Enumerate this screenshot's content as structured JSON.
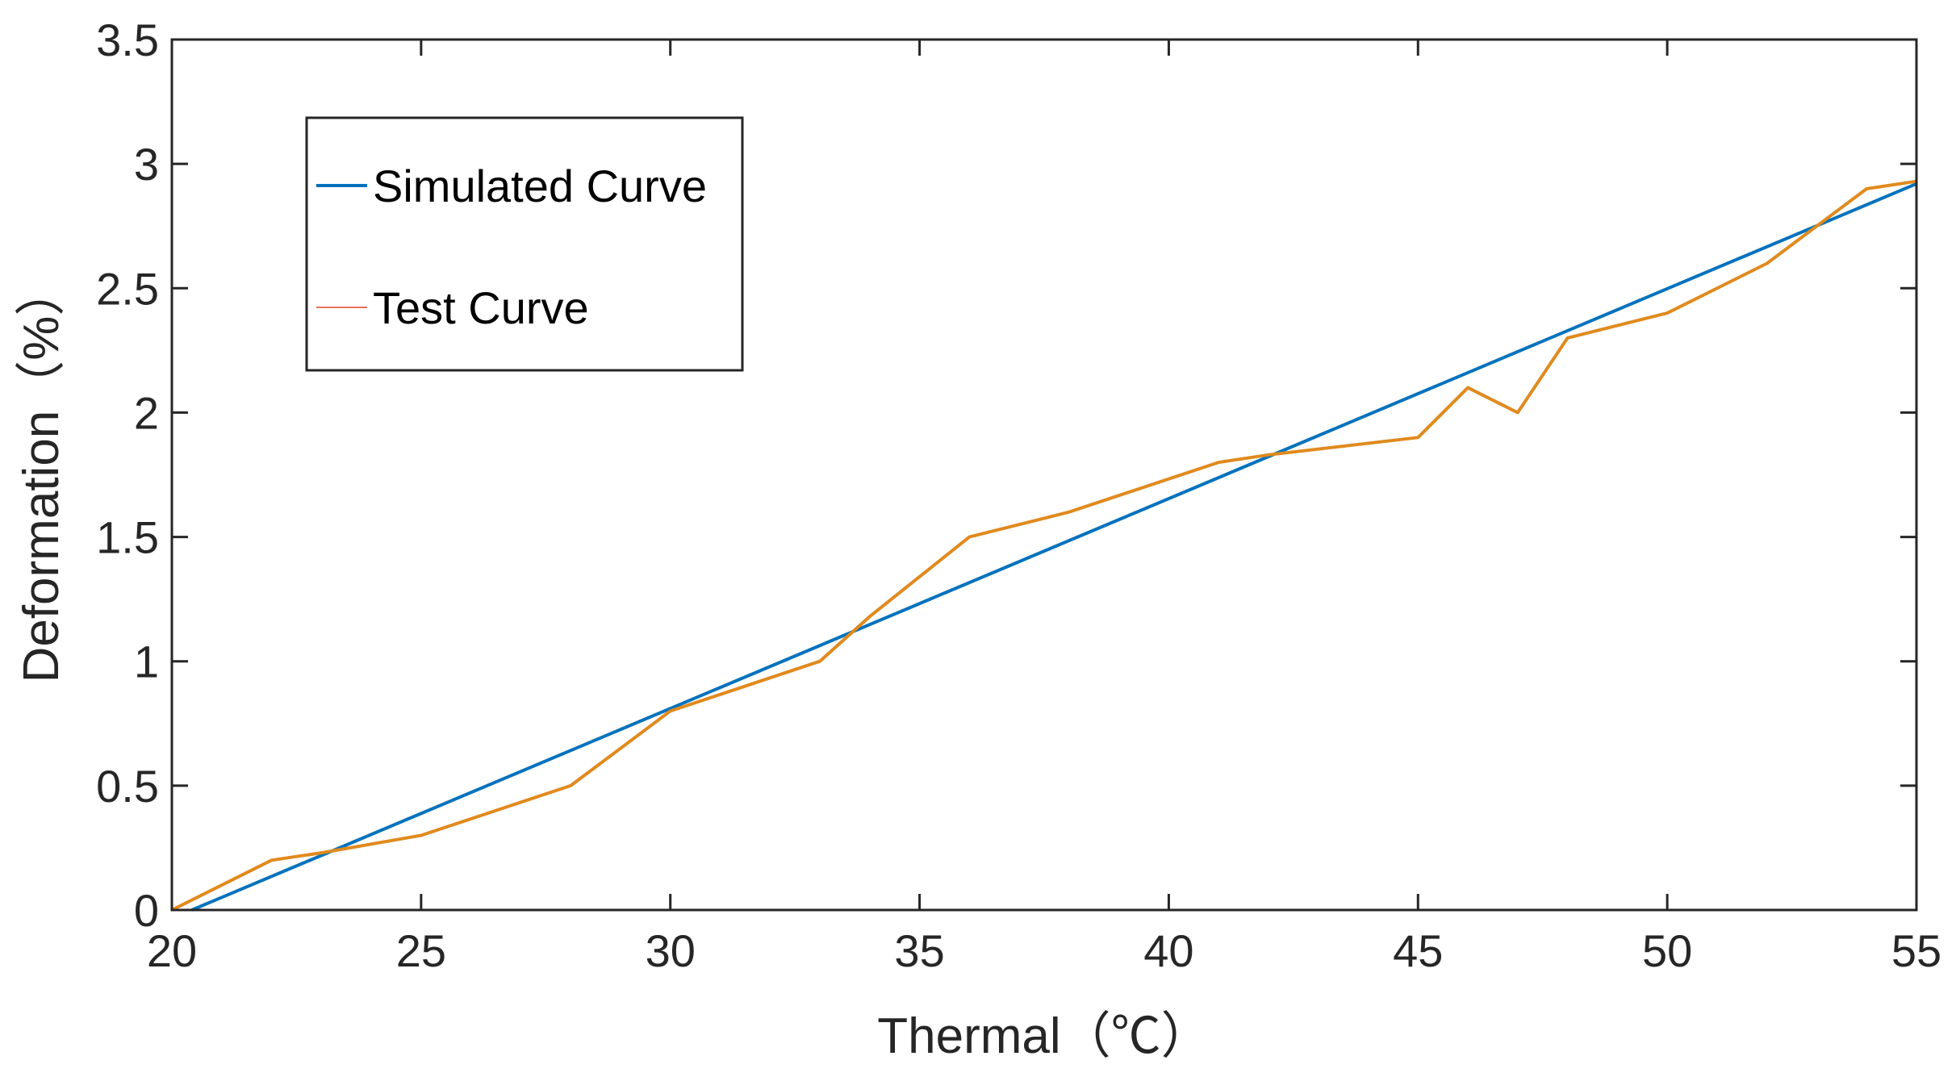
{
  "chart_data": {
    "type": "line",
    "title": "",
    "xlabel": "Thermal（℃）",
    "ylabel": "Deformation（%）",
    "xlim": [
      20,
      55
    ],
    "ylim": [
      0,
      3.5
    ],
    "xticks": [
      20,
      25,
      30,
      35,
      40,
      45,
      50,
      55
    ],
    "yticks": [
      0,
      0.5,
      1,
      1.5,
      2,
      2.5,
      3,
      3.5
    ],
    "xtick_labels": [
      "20",
      "25",
      "30",
      "35",
      "40",
      "45",
      "50",
      "55"
    ],
    "ytick_labels": [
      "0",
      "0.5",
      "1",
      "1.5",
      "2",
      "2.5",
      "3",
      "3.5"
    ],
    "legend_position": "top-left",
    "series": [
      {
        "name": "Simulated Curve",
        "color": "#0072BD",
        "legend_color": "#0072BD",
        "x": [
          20.4,
          55
        ],
        "y": [
          0,
          2.92
        ]
      },
      {
        "name": "Test Curve",
        "color": "#E08A1E",
        "legend_color": "#E8735A",
        "x": [
          20,
          22,
          23,
          25,
          28,
          30,
          33,
          34,
          36,
          38,
          41,
          42,
          45,
          46,
          47,
          48,
          50,
          52,
          53,
          54,
          55
        ],
        "y": [
          0,
          0.2,
          0.23,
          0.3,
          0.5,
          0.8,
          1.0,
          1.18,
          1.5,
          1.6,
          1.8,
          1.83,
          1.9,
          2.1,
          2.0,
          2.3,
          2.4,
          2.6,
          2.75,
          2.9,
          2.93
        ]
      }
    ]
  }
}
